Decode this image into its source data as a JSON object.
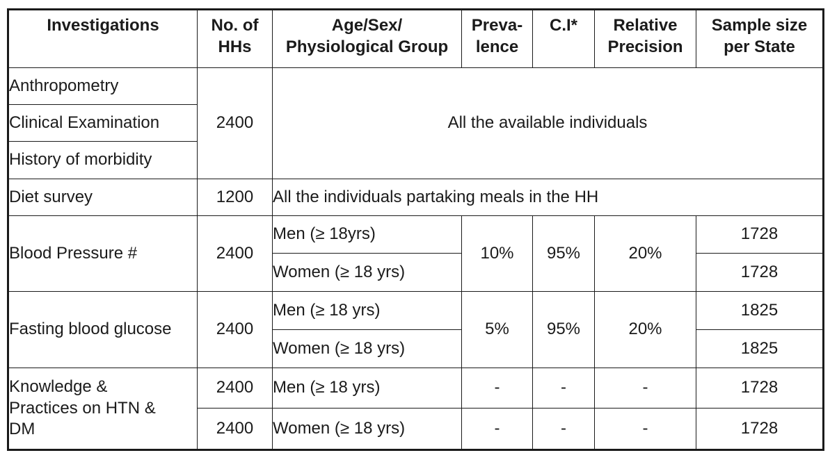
{
  "page": {
    "background_color": "#ffffff",
    "text_color": "#1b1b1b",
    "border_color": "#1a1a1a"
  },
  "table": {
    "header": [
      "Investigations",
      "No. of\nHHs",
      "Age/Sex/\nPhysiological Group",
      "Preva-\nlence",
      "C.I*",
      "Relative\nPrecision",
      "Sample size\nper State"
    ],
    "sections": [
      {
        "investigations": [
          "Anthropometry",
          "Clinical Examination",
          "History of morbidity"
        ],
        "no_of_hhs": "2400",
        "note": "All the available individuals"
      },
      {
        "investigation": "Diet survey",
        "no_of_hhs": "1200",
        "note": "All the individuals partaking meals in the HH"
      },
      {
        "investigation": "Blood Pressure #",
        "no_of_hhs": "2400",
        "prevalence": "10%",
        "ci": "95%",
        "relative_precision": "20%",
        "rows": [
          {
            "group": "Men (≥ 18yrs)",
            "sample_size": "1728"
          },
          {
            "group": "Women (≥ 18 yrs)",
            "sample_size": "1728"
          }
        ]
      },
      {
        "investigation": "Fasting blood glucose",
        "no_of_hhs": "2400",
        "prevalence": "5%",
        "ci": "95%",
        "relative_precision": "20%",
        "rows": [
          {
            "group": "Men (≥ 18 yrs)",
            "sample_size": "1825"
          },
          {
            "group": "Women (≥ 18 yrs)",
            "sample_size": "1825"
          }
        ]
      },
      {
        "investigation": "Knowledge &\nPractices on HTN &\nDM",
        "rows": [
          {
            "no_of_hhs": "2400",
            "group": "Men (≥ 18 yrs)",
            "prevalence": "-",
            "ci": "-",
            "relative_precision": "-",
            "sample_size": "1728"
          },
          {
            "no_of_hhs": "2400",
            "group": "Women (≥ 18 yrs)",
            "prevalence": "-",
            "ci": "-",
            "relative_precision": "-",
            "sample_size": "1728"
          }
        ]
      }
    ]
  }
}
